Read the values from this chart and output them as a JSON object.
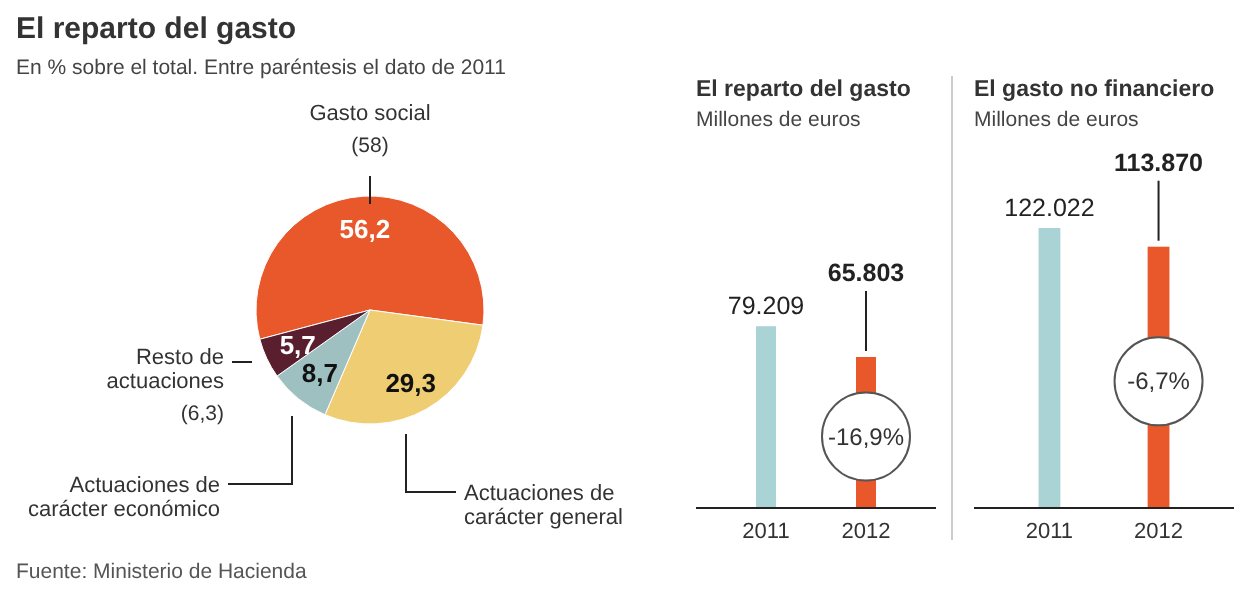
{
  "chart_data": [
    {
      "type": "pie",
      "title": "El reparto del gasto",
      "subtitle": "En % sobre el total. Entre paréntesis el dato de 2011",
      "categories": [
        "Gasto social",
        "Actuaciones de carácter general",
        "Actuaciones de carácter económico",
        "Resto de actuaciones"
      ],
      "values": [
        56.2,
        29.3,
        8.7,
        5.7
      ],
      "value_labels": [
        "56,2",
        "29,3",
        "8,7",
        "5,7"
      ],
      "colors": [
        "#e8582a",
        "#efcd72",
        "#9fc0c1",
        "#5a1f2e"
      ],
      "annotations": [
        {
          "text": "(58)",
          "x": "Gasto social"
        },
        {
          "text": "(6,3)",
          "x": "Resto de actuaciones"
        },
        "Fuente: Ministerio de Hacienda"
      ]
    },
    {
      "type": "bar",
      "title": "El reparto del gasto",
      "subtitle": "Millones de euros",
      "categories": [
        "2011",
        "2012"
      ],
      "values": [
        79209,
        65803
      ],
      "value_labels": [
        "79.209",
        "65.803"
      ],
      "colors": [
        "#a9d3d5",
        "#e8582a"
      ],
      "annotations": [
        {
          "text": "-16,9%",
          "x": "2012"
        }
      ]
    },
    {
      "type": "bar",
      "title": "El gasto no financiero",
      "subtitle": "Millones de euros",
      "categories": [
        "2011",
        "2012"
      ],
      "values": [
        122022,
        113870
      ],
      "value_labels": [
        "122.022",
        "113.870"
      ],
      "colors": [
        "#a9d3d5",
        "#e8582a"
      ],
      "annotations": [
        {
          "text": "-6,7%",
          "x": "2012"
        }
      ]
    }
  ]
}
